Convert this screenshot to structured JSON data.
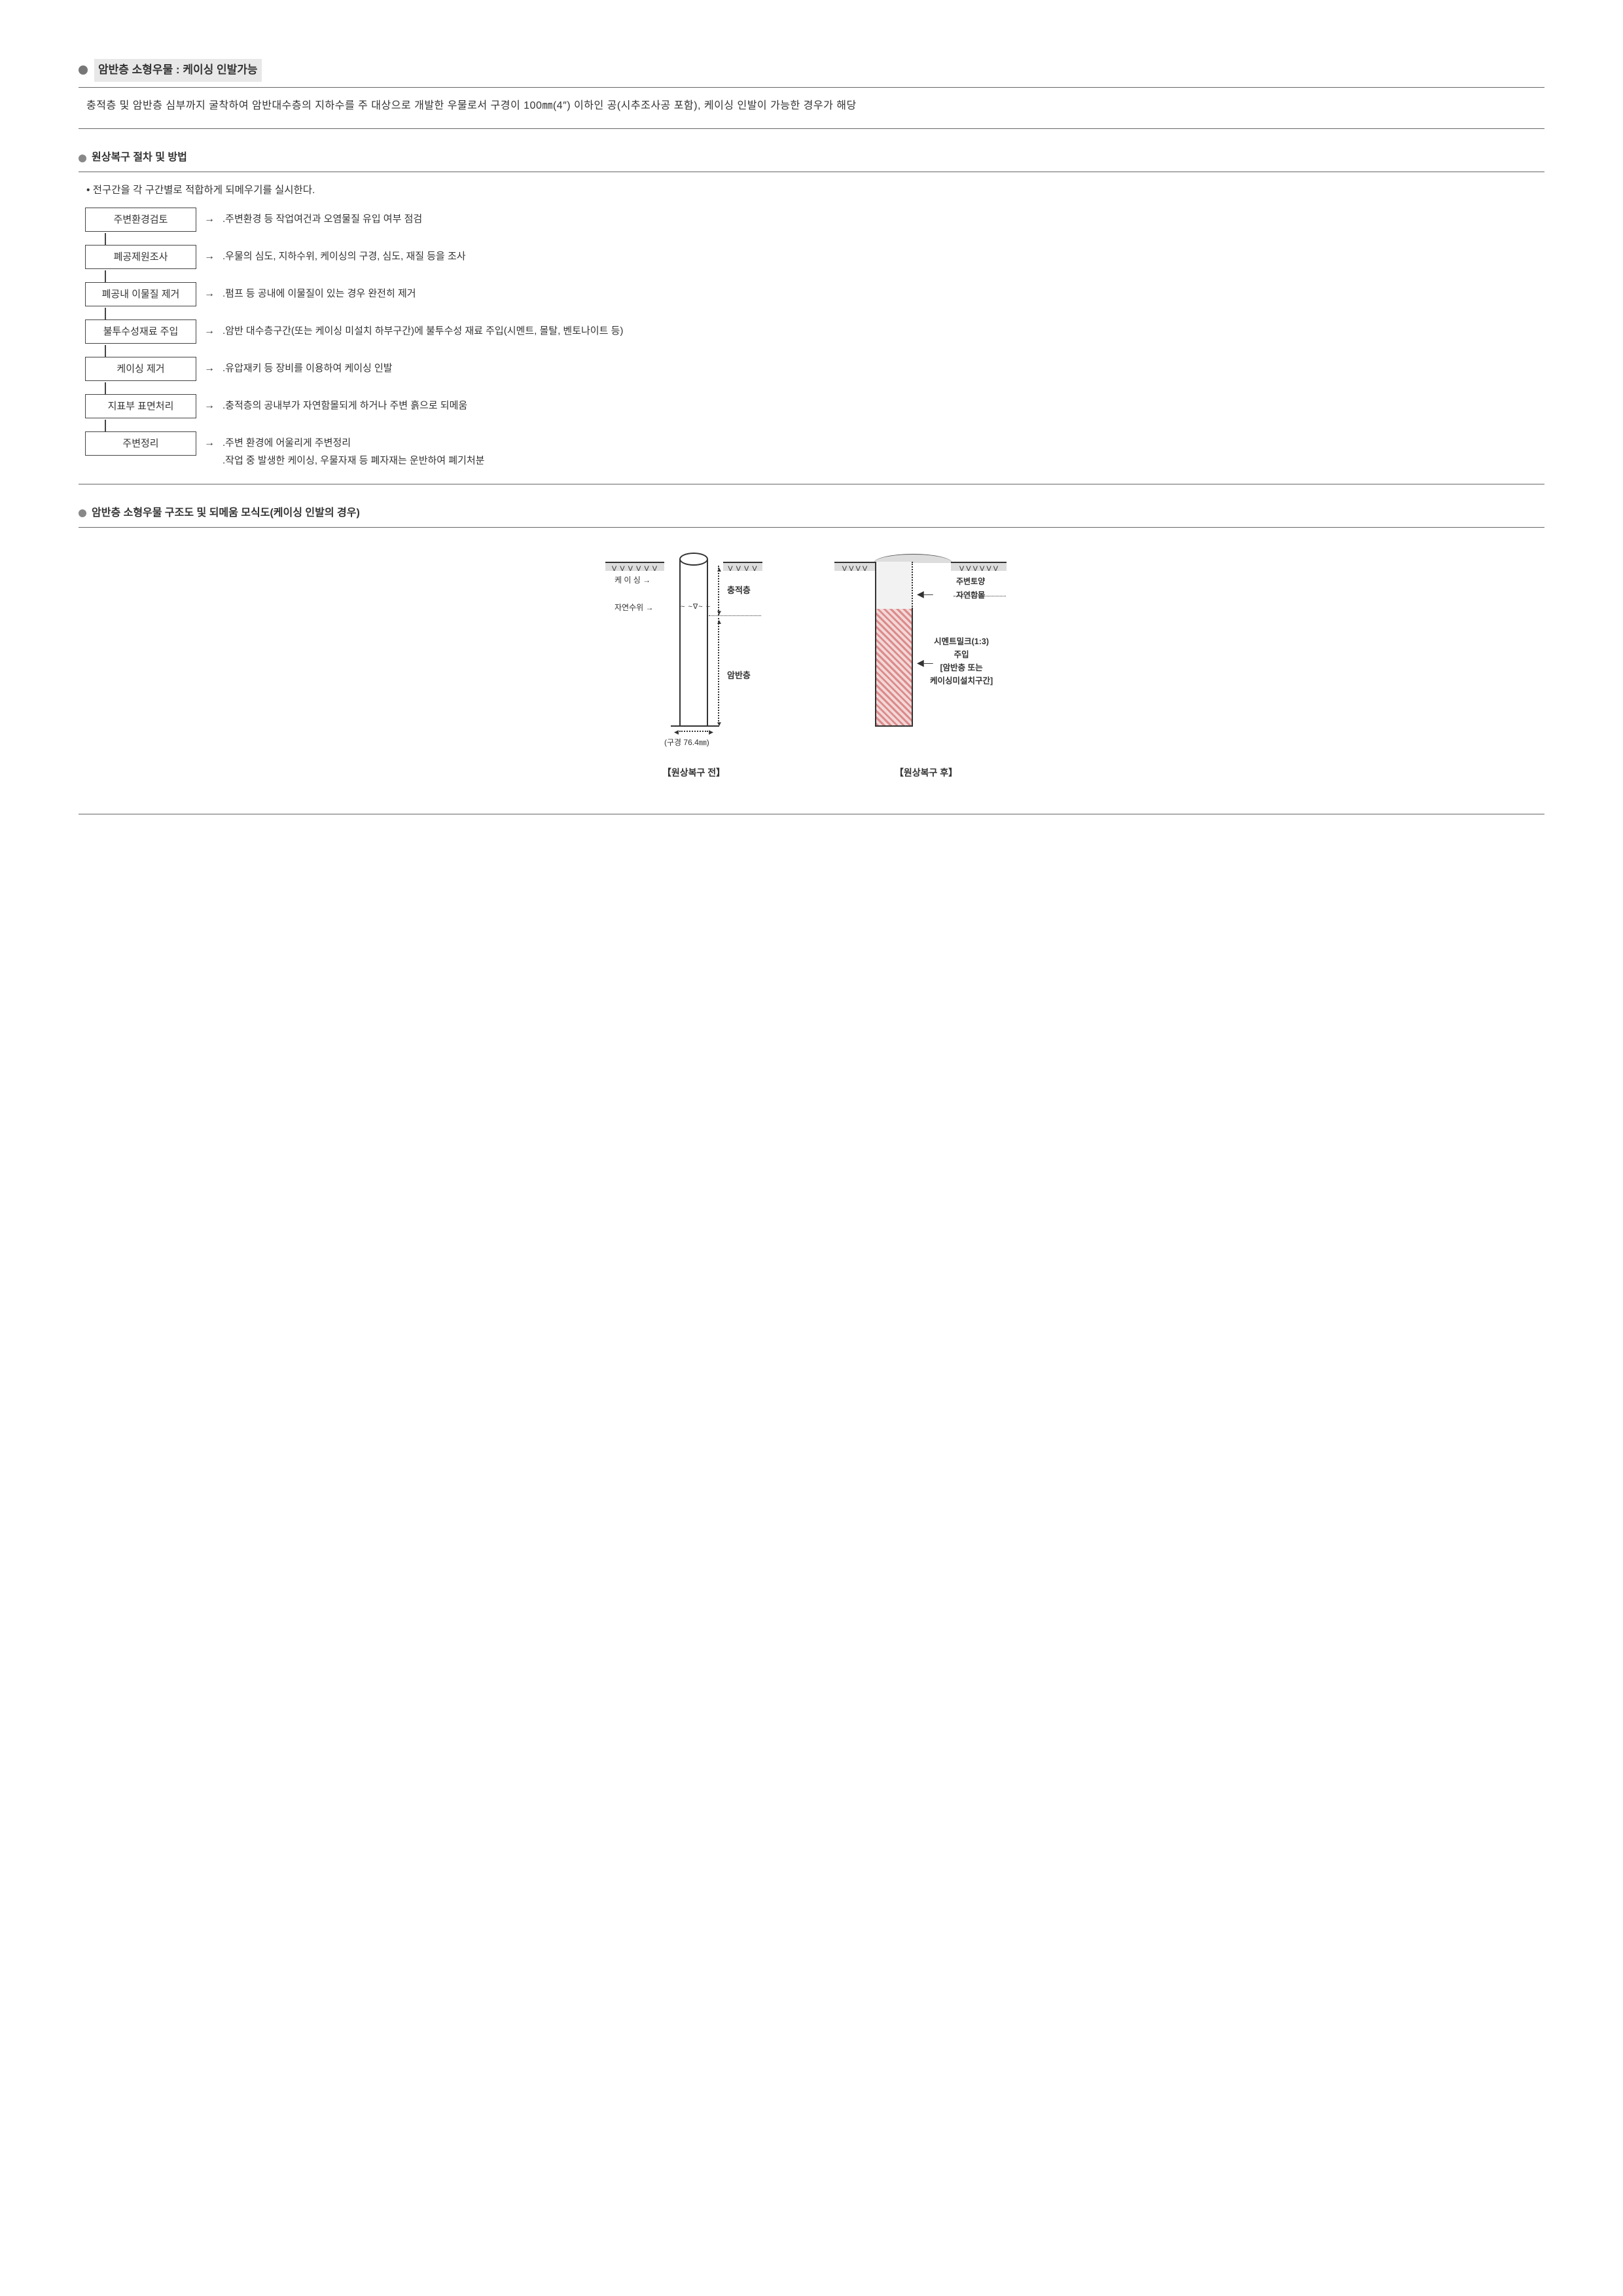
{
  "header": {
    "title_main": "암반층 소형우물 :",
    "title_sub": "케이싱 인발가능"
  },
  "description": {
    "line": "충적층 및 암반층 심부까지 굴착하여 암반대수층의 지하수를 주 대상으로 개발한 우물로서 구경이 100㎜(4″) 이하인 공(시추조사공 포함), 케이싱 인발이 가능한 경우가 해당"
  },
  "proc": {
    "title": "원상복구 절차 및 방법",
    "intro": "• 전구간을 각 구간별로 적합하게 되메우기를 실시한다.",
    "steps": [
      {
        "box": "주변환경검토",
        "desc": ".주변환경 등 작업여건과 오염물질 유입 여부 점검"
      },
      {
        "box": "폐공제원조사",
        "desc": ".우물의 심도, 지하수위, 케이싱의 구경, 심도, 재질 등을 조사"
      },
      {
        "box": "폐공내 이물질 제거",
        "desc": ".펌프 등 공내에 이물질이 있는 경우 완전히 제거"
      },
      {
        "box": "불투수성재료 주입",
        "desc": ".암반 대수층구간(또는 케이싱 미설치 하부구간)에 불투수성 재료 주입(시멘트, 몰탈, 벤토나이트 등)"
      },
      {
        "box": "케이싱 제거",
        "desc": ".유압재키 등 장비를 이용하여 케이싱 인발"
      },
      {
        "box": "지표부 표면처리",
        "desc": ".충적층의 공내부가 자연함몰되게 하거나 주변 흙으로 되메움"
      },
      {
        "box": "주변정리",
        "desc": ".주변 환경에 어울리게 주변정리\n.작업 중 발생한 케이싱, 우물자재 등 폐자재는 운반하여 폐기처분"
      }
    ]
  },
  "schema": {
    "title": "암반층 소형우물 구조도 및 되메움 모식도(케이싱 인발의 경우)"
  },
  "dia1": {
    "vpattern_l": "V V V V V V",
    "vpattern_r": "V V V V",
    "casing_label": "케 이 싱 →",
    "water_label": "자연수위 →",
    "water_mark": "~ ~∇~ ~",
    "choong": "충적층",
    "amban": "암반층",
    "diameter": "(구경 76.4㎜)",
    "caption": "【원상복구 전】"
  },
  "dia2": {
    "vpattern_l": "V V V V",
    "vpattern_r": "V V V V V V",
    "soil_label": "주변토양\n자연함몰",
    "milk_lines": [
      "시멘트밀크(1:3)",
      "주입",
      "[암반층 또는",
      "케이싱미설치구간]"
    ],
    "caption": "【원상복구 후】"
  },
  "style": {
    "text_color": "#333333",
    "line_color": "#444444",
    "ground_fill": "#dddddd",
    "hatch_c1": "#db8b8b",
    "hatch_c2": "#f3d7d7"
  }
}
